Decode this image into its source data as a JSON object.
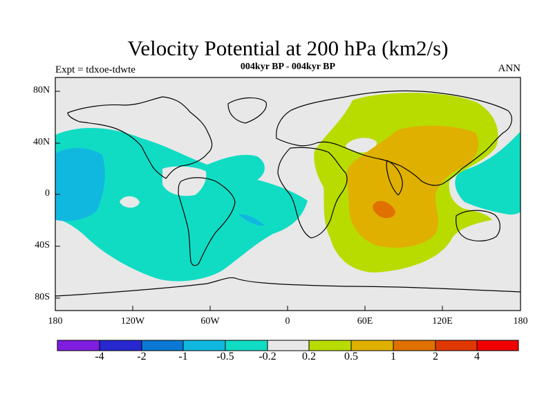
{
  "header": {
    "title": "Velocity Potential at 200 hPa (km2/s)",
    "subtitle": "004kyr BP - 004kyr BP",
    "left_label": "Expt = tdxoe-tdwte",
    "right_label": "ANN"
  },
  "axes": {
    "y_ticks": [
      "80N",
      "40N",
      "0",
      "40S",
      "80S"
    ],
    "x_ticks": [
      "180",
      "120W",
      "60W",
      "0",
      "60E",
      "120E",
      "180"
    ]
  },
  "colorbar": {
    "labels": [
      "-4",
      "-2",
      "-1",
      "-0.5",
      "-0.2",
      "0.2",
      "0.5",
      "1",
      "2",
      "4"
    ],
    "colors": [
      "#7f1ee0",
      "#2828d0",
      "#0a78d4",
      "#10b8e0",
      "#10dcc4",
      "#e8e8e8",
      "#b8dc00",
      "#e0b000",
      "#e07000",
      "#e03800",
      "#f00000"
    ]
  },
  "fill_colors": {
    "background_field": "#e8e8e8",
    "negative_small": "#10dcc4",
    "negative_medium": "#10b8e0",
    "positive_small": "#b8dc00",
    "positive_medium": "#e0b000",
    "positive_large": "#e07000"
  }
}
